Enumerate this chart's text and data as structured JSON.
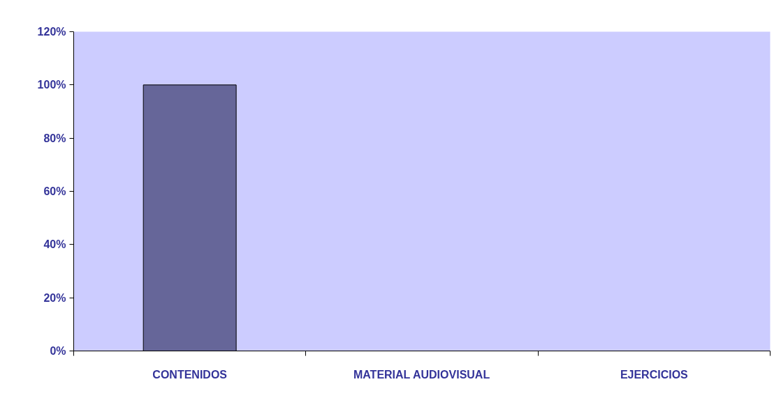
{
  "chart_data": {
    "type": "bar",
    "categories": [
      "CONTENIDOS",
      "MATERIAL AUDIOVISUAL",
      "EJERCICIOS"
    ],
    "values": [
      100,
      0,
      0
    ],
    "color": "#666699",
    "ylim": [
      0,
      120
    ],
    "yticks": [
      {
        "value": 0,
        "label": "0%"
      },
      {
        "value": 20,
        "label": "20%"
      },
      {
        "value": 40,
        "label": "40%"
      },
      {
        "value": 60,
        "label": "60%"
      },
      {
        "value": 80,
        "label": "80%"
      },
      {
        "value": 100,
        "label": "100%"
      },
      {
        "value": 120,
        "label": "120%"
      }
    ],
    "grid": false
  }
}
